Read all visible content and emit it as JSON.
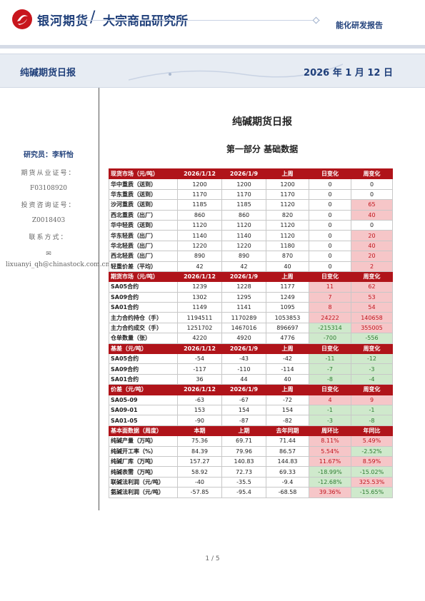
{
  "header": {
    "brand": "银河期货",
    "slash": "/",
    "institute": "大宗商品研究所",
    "report_type": "能化研发报告"
  },
  "banner": {
    "title": "纯碱期货日报",
    "date": "2026 年 1 月 12 日"
  },
  "sidebar": {
    "researcher": "研究员：李轩怡",
    "license_label": "期货从业证号：",
    "license_no": "F03108920",
    "consult_label": "投资咨询证号：",
    "consult_no": "Z0018403",
    "contact_label": "联系方式：",
    "email": "lixuanyi_qh@chinastock.com.cn"
  },
  "doc": {
    "title": "纯碱期货日报",
    "section": "第一部分  基础数据"
  },
  "table": {
    "sections": [
      {
        "header": [
          "现货市场（元/吨）",
          "2026/1/12",
          "2026/1/9",
          "上周",
          "日变化",
          "周变化"
        ],
        "rows": [
          [
            "华中重质（送到）",
            "1200",
            "1200",
            "1200",
            "0",
            "0"
          ],
          [
            "华东重质（送到）",
            "1170",
            "1170",
            "1170",
            "0",
            "0"
          ],
          [
            "沙河重质（送到）",
            "1185",
            "1185",
            "1120",
            "0",
            "65"
          ],
          [
            "西北重质（出厂）",
            "860",
            "860",
            "820",
            "0",
            "40"
          ],
          [
            "华中轻质（送到）",
            "1120",
            "1120",
            "1120",
            "0",
            "0"
          ],
          [
            "华东轻质（出厂）",
            "1140",
            "1140",
            "1120",
            "0",
            "20"
          ],
          [
            "华北轻质（出厂）",
            "1220",
            "1220",
            "1180",
            "0",
            "40"
          ],
          [
            "西北轻质（出厂）",
            "890",
            "890",
            "870",
            "0",
            "20"
          ],
          [
            "轻重价差（平均）",
            "42",
            "42",
            "40",
            "0",
            "2"
          ]
        ]
      },
      {
        "header": [
          "期货市场（元/吨）",
          "2026/1/12",
          "2026/1/9",
          "上周",
          "日变化",
          "周变化"
        ],
        "rows": [
          [
            "SA05合约",
            "1239",
            "1228",
            "1177",
            "11",
            "62"
          ],
          [
            "SA09合约",
            "1302",
            "1295",
            "1249",
            "7",
            "53"
          ],
          [
            "SA01合约",
            "1149",
            "1141",
            "1095",
            "8",
            "54"
          ],
          [
            "主力合约持仓（手）",
            "1194511",
            "1170289",
            "1053853",
            "24222",
            "140658"
          ],
          [
            "主力合约成交（手）",
            "1251702",
            "1467016",
            "896697",
            "-215314",
            "355005"
          ],
          [
            "仓单数量（张）",
            "4220",
            "4920",
            "4776",
            "-700",
            "-556"
          ]
        ]
      },
      {
        "header": [
          "基差（元/吨）",
          "2026/1/12",
          "2026/1/9",
          "上周",
          "日变化",
          "周变化"
        ],
        "rows": [
          [
            "SA05合约",
            "-54",
            "-43",
            "-42",
            "-11",
            "-12"
          ],
          [
            "SA09合约",
            "-117",
            "-110",
            "-114",
            "-7",
            "-3"
          ],
          [
            "SA01合约",
            "36",
            "44",
            "40",
            "-8",
            "-4"
          ]
        ]
      },
      {
        "header": [
          "价差（元/吨）",
          "2026/1/12",
          "2026/1/9",
          "上周",
          "日变化",
          "周变化"
        ],
        "rows": [
          [
            "SA05-09",
            "-63",
            "-67",
            "-72",
            "4",
            "9"
          ],
          [
            "SA09-01",
            "153",
            "154",
            "154",
            "-1",
            "-1"
          ],
          [
            "SA01-05",
            "-90",
            "-87",
            "-82",
            "-3",
            "-8"
          ]
        ]
      },
      {
        "header": [
          "基本面数据（周度）",
          "本期",
          "上期",
          "去年同期",
          "周环比",
          "年同比"
        ],
        "rows": [
          [
            "纯碱产量（万吨）",
            "75.36",
            "69.71",
            "71.44",
            "8.11%",
            "5.49%"
          ],
          [
            "纯碱开工率（%）",
            "84.39",
            "79.96",
            "86.57",
            "5.54%",
            "-2.52%"
          ],
          [
            "纯碱厂库（万吨）",
            "157.27",
            "140.83",
            "144.83",
            "11.67%",
            "8.59%"
          ],
          [
            "纯碱表需（万吨）",
            "58.92",
            "72.73",
            "69.33",
            "-18.99%",
            "-15.02%"
          ],
          [
            "联碱法利润（元/吨）",
            "-40",
            "-35.5",
            "-9.4",
            "-12.68%",
            "325.53%"
          ],
          [
            "氨碱法利润（元/吨）",
            "-57.85",
            "-95.4",
            "-68.58",
            "39.36%",
            "-15.65%"
          ]
        ]
      }
    ]
  },
  "footer": {
    "page": "1 / 5"
  },
  "colors": {
    "brand_blue": "#1f3f7a",
    "header_red": "#b0141a",
    "positive": "#c0141c",
    "negative": "#2e7d32"
  }
}
